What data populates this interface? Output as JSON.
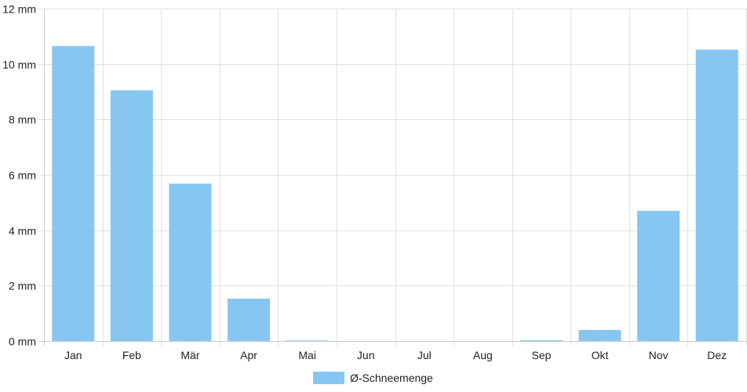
{
  "chart_data": {
    "type": "bar",
    "categories": [
      "Jan",
      "Feb",
      "Mär",
      "Apr",
      "Mai",
      "Jun",
      "Jul",
      "Aug",
      "Sep",
      "Okt",
      "Nov",
      "Dez"
    ],
    "series": [
      {
        "name": "Ø-Schneemenge",
        "values": [
          10.65,
          9.05,
          5.68,
          1.53,
          0.02,
          0,
          0,
          0,
          0.03,
          0.4,
          4.7,
          10.52
        ],
        "color": "#87c6f1"
      }
    ],
    "y_ticks": [
      "0 mm",
      "2 mm",
      "4 mm",
      "6 mm",
      "8 mm",
      "10 mm",
      "12 mm"
    ],
    "ylim": [
      0,
      12
    ],
    "y_step": 2,
    "grid": true,
    "legend_position": "bottom-center",
    "grid_color": "#e0e0e0",
    "axis_color": "#cccccc"
  }
}
